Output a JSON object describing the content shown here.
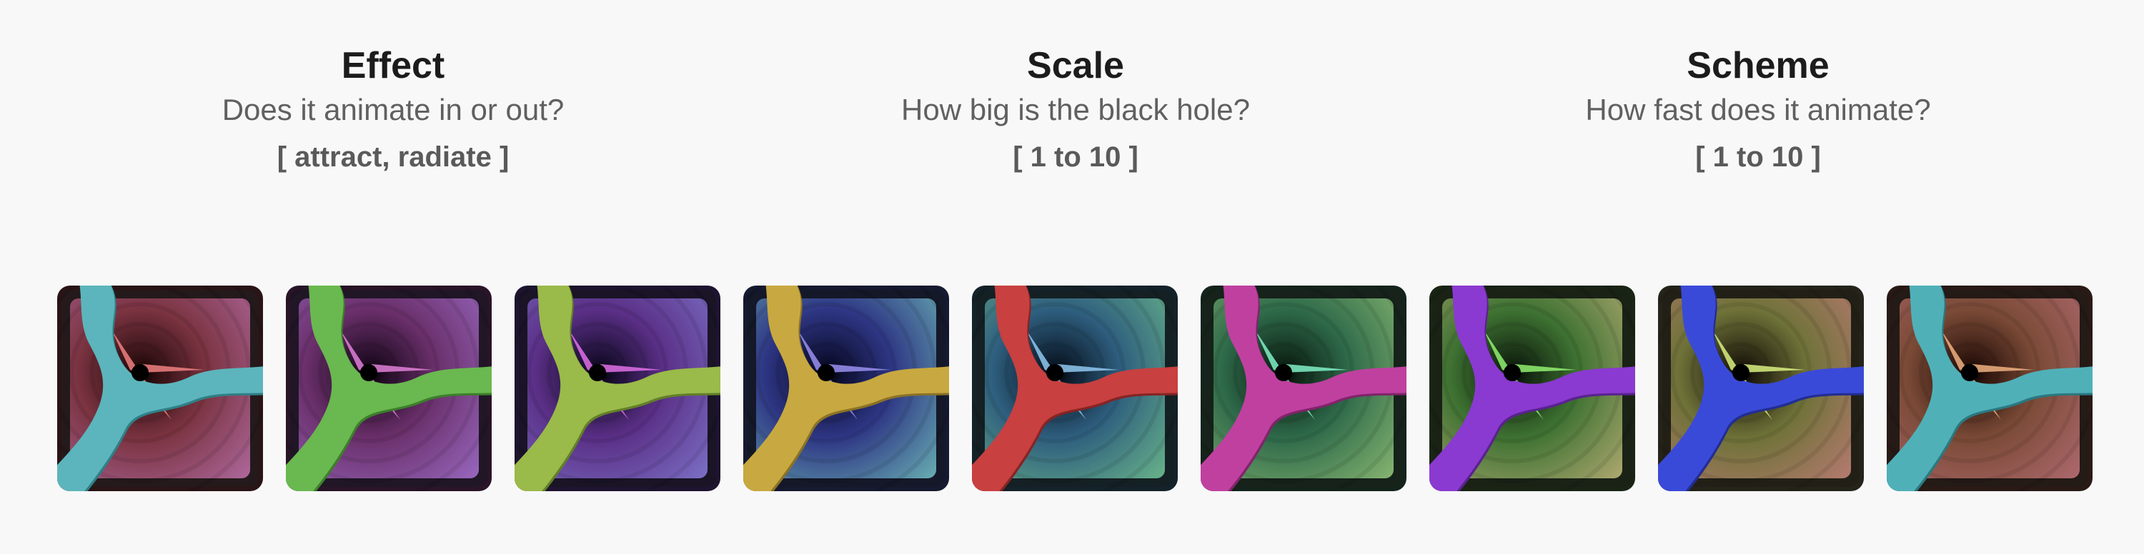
{
  "parameters": [
    {
      "title": "Effect",
      "question": "Does it animate in or out?",
      "range": "[ attract, radiate ]"
    },
    {
      "title": "Scale",
      "question": "How big is the black hole?",
      "range": "[ 1 to 10 ]"
    },
    {
      "title": "Scheme",
      "question": "How fast does it animate?",
      "range": "[ 1 to 10 ]"
    }
  ],
  "tiles": [
    {
      "frame": "#2a1416",
      "inner": "#241a1c",
      "center": "#2a0d0f",
      "mid": "#7a3340",
      "outer": "#b06aa0",
      "ribbon": "#5cb5bc",
      "ribbon_dark": "#2f7f86",
      "spike": "#f08080"
    },
    {
      "frame": "#2a1428",
      "inner": "#201626",
      "center": "#1e0b22",
      "mid": "#6a2f6a",
      "outer": "#9a6ac2",
      "ribbon": "#6ab850",
      "ribbon_dark": "#3c7f2a",
      "spike": "#e080d8"
    },
    {
      "frame": "#1e1430",
      "inner": "#1a1426",
      "center": "#150c2a",
      "mid": "#5a2f86",
      "outer": "#7d72c8",
      "ribbon": "#9aba4a",
      "ribbon_dark": "#627f28",
      "spike": "#e070e8"
    },
    {
      "frame": "#161a30",
      "inner": "#141828",
      "center": "#0c0e2e",
      "mid": "#2e3684",
      "outer": "#6ab2b4",
      "ribbon": "#c8a840",
      "ribbon_dark": "#8a7226",
      "spike": "#9a90f0"
    },
    {
      "frame": "#14222a",
      "inner": "#142024",
      "center": "#0c1a2a",
      "mid": "#2e5e7e",
      "outer": "#6ab68a",
      "ribbon": "#c84040",
      "ribbon_dark": "#862424",
      "spike": "#90c8f0"
    },
    {
      "frame": "#14241c",
      "inner": "#16221a",
      "center": "#0e2416",
      "mid": "#2e6a4a",
      "outer": "#8ab872",
      "ribbon": "#c040a0",
      "ribbon_dark": "#80246a",
      "spike": "#80f0c8"
    },
    {
      "frame": "#1a2414",
      "inner": "#1a2216",
      "center": "#122410",
      "mid": "#3e7232",
      "outer": "#b2aa72",
      "ribbon": "#8a3ad0",
      "ribbon_dark": "#5a2290",
      "spike": "#90f070"
    },
    {
      "frame": "#24241a",
      "inner": "#222016",
      "center": "#201c0e",
      "mid": "#6e7238",
      "outer": "#b87a72",
      "ribbon": "#3a4ad8",
      "ribbon_dark": "#222e92",
      "spike": "#d8f080"
    },
    {
      "frame": "#2a1a16",
      "inner": "#241a16",
      "center": "#2a120c",
      "mid": "#7a4a36",
      "outer": "#b06a70",
      "ribbon": "#50b0b8",
      "ribbon_dark": "#2a7880",
      "spike": "#f0b080"
    }
  ]
}
